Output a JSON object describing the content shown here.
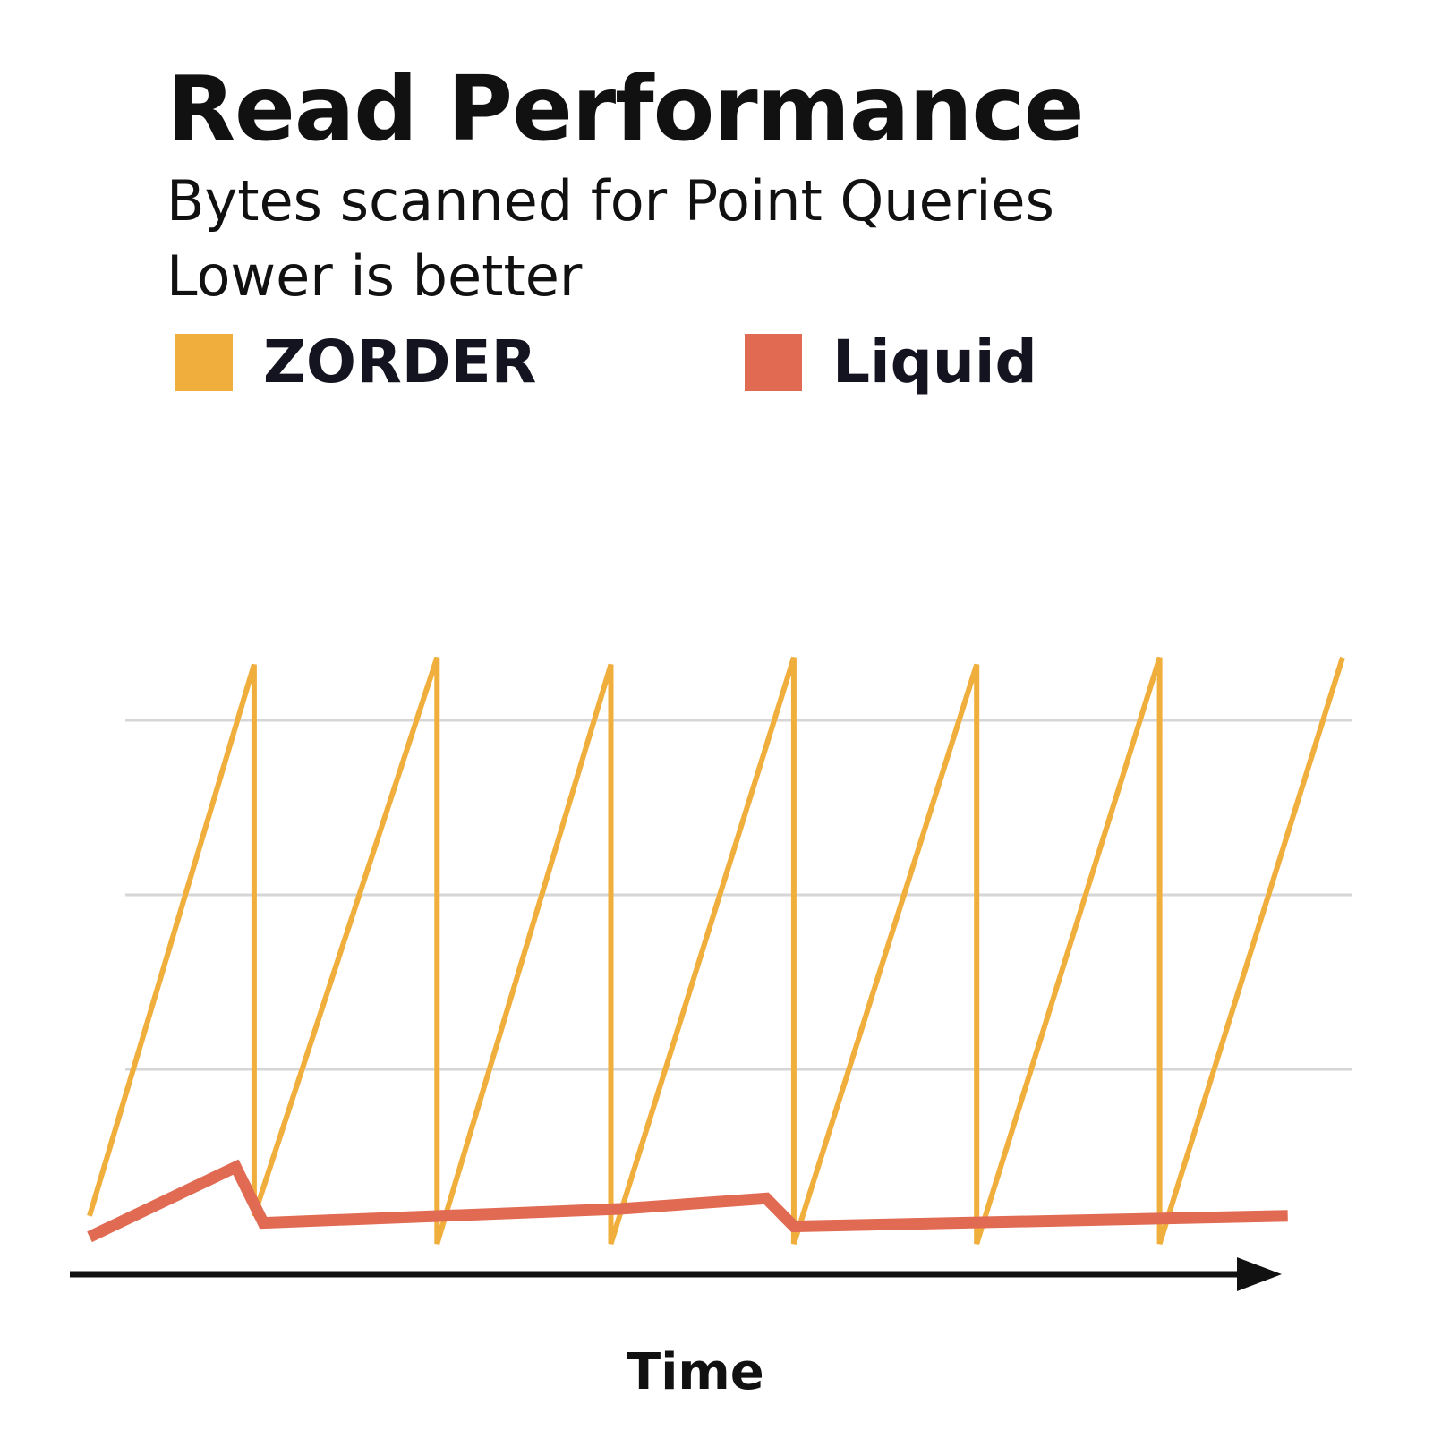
{
  "chart_data": {
    "type": "line",
    "title": "Read Performance",
    "subtitle": "Bytes scanned for Point Queries",
    "note": "Lower is better",
    "xlabel": "Time",
    "ylabel": "",
    "axis_arrow": true,
    "grid": "horizontal",
    "legend_position": "top-left",
    "ylim": [
      0,
      100
    ],
    "gridlines": [
      25,
      50,
      75
    ],
    "series": [
      {
        "name": "ZORDER",
        "color": "#F0AE3C",
        "x": [
          0,
          1.8,
          1.8,
          3.8,
          3.8,
          5.7,
          5.7,
          7.7,
          7.7,
          9.7,
          9.7,
          11.7,
          11.7,
          13.7
        ],
        "y": [
          4,
          83,
          4,
          84,
          0,
          83,
          0,
          84,
          0,
          83,
          0,
          84,
          0,
          84
        ]
      },
      {
        "name": "Liquid",
        "color": "#E06A52",
        "x": [
          0,
          1.6,
          1.9,
          5.8,
          7.4,
          7.7,
          13.1
        ],
        "y": [
          1,
          11,
          3,
          5,
          6.5,
          2.5,
          4
        ]
      }
    ],
    "xlim": [
      0,
      13.7
    ]
  }
}
